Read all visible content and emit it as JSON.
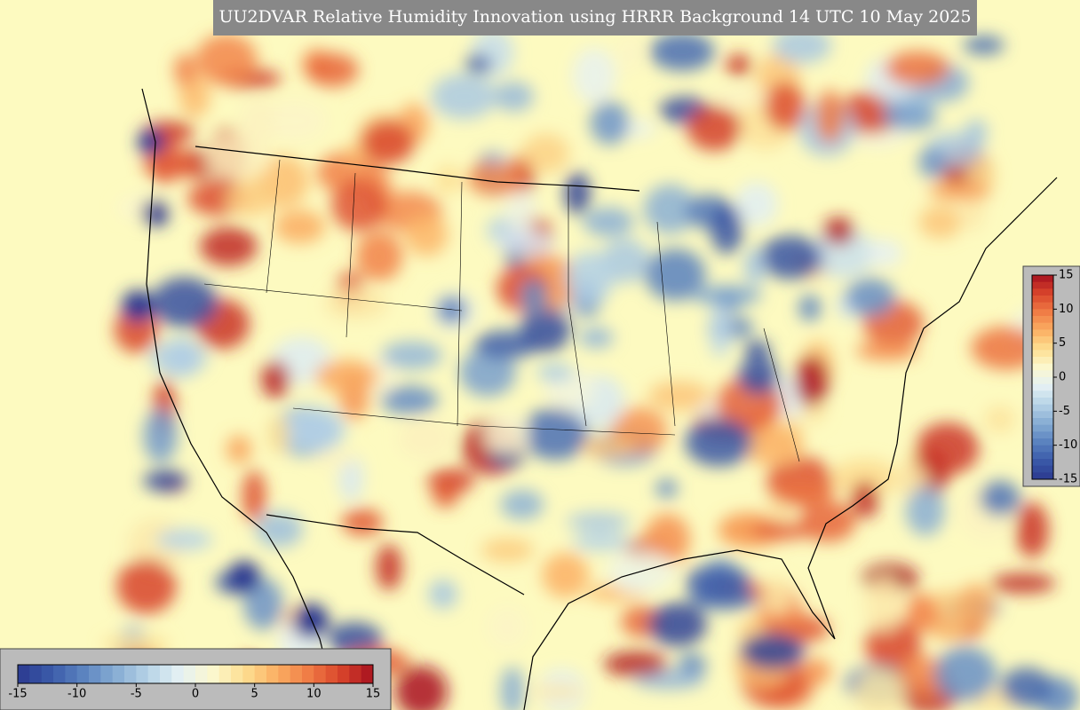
{
  "title": "UU2DVAR Relative Humidity Innovation using HRRR Background 14 UTC 10 May 2025",
  "colorbar_bottom": {
    "ticks": [
      -15,
      -10,
      -5,
      0,
      5,
      10,
      15
    ]
  },
  "colorbar_right": {
    "ticks": [
      15,
      10,
      5,
      0,
      -5,
      -10,
      -15
    ]
  }
}
